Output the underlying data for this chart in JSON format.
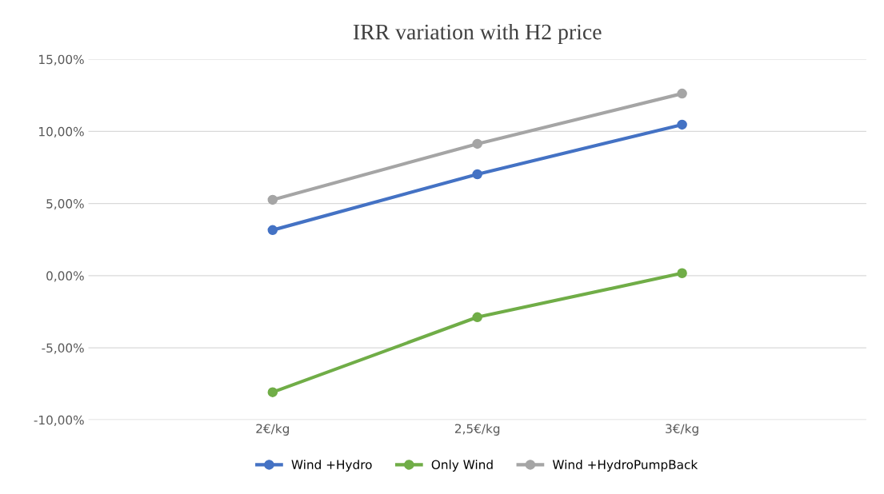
{
  "chart_data": {
    "type": "line",
    "title": "IRR variation with H2 price",
    "categories": [
      "2€/kg",
      "2,5€/kg",
      "3€/kg"
    ],
    "series": [
      {
        "name": "Wind +Hydro",
        "color": "#4472c4",
        "values": [
          3.16,
          7.03,
          10.47
        ]
      },
      {
        "name": "Only Wind",
        "color": "#70ad47",
        "values": [
          -8.08,
          -2.88,
          0.17
        ]
      },
      {
        "name": "Wind +HydroPumpBack",
        "color": "#a5a5a5",
        "values": [
          5.26,
          9.14,
          12.62
        ]
      }
    ],
    "ylim": [
      -10,
      15
    ],
    "yticks": [
      {
        "value": -10,
        "label": "-10,00%"
      },
      {
        "value": -5,
        "label": "-5,00%"
      },
      {
        "value": 0,
        "label": "0,00%"
      },
      {
        "value": 5,
        "label": "5,00%"
      },
      {
        "value": 10,
        "label": "10,00%"
      },
      {
        "value": 15,
        "label": "15,00%"
      }
    ],
    "grid": "y",
    "legend": "bottom",
    "marker": "circle",
    "line_style": "solid"
  }
}
